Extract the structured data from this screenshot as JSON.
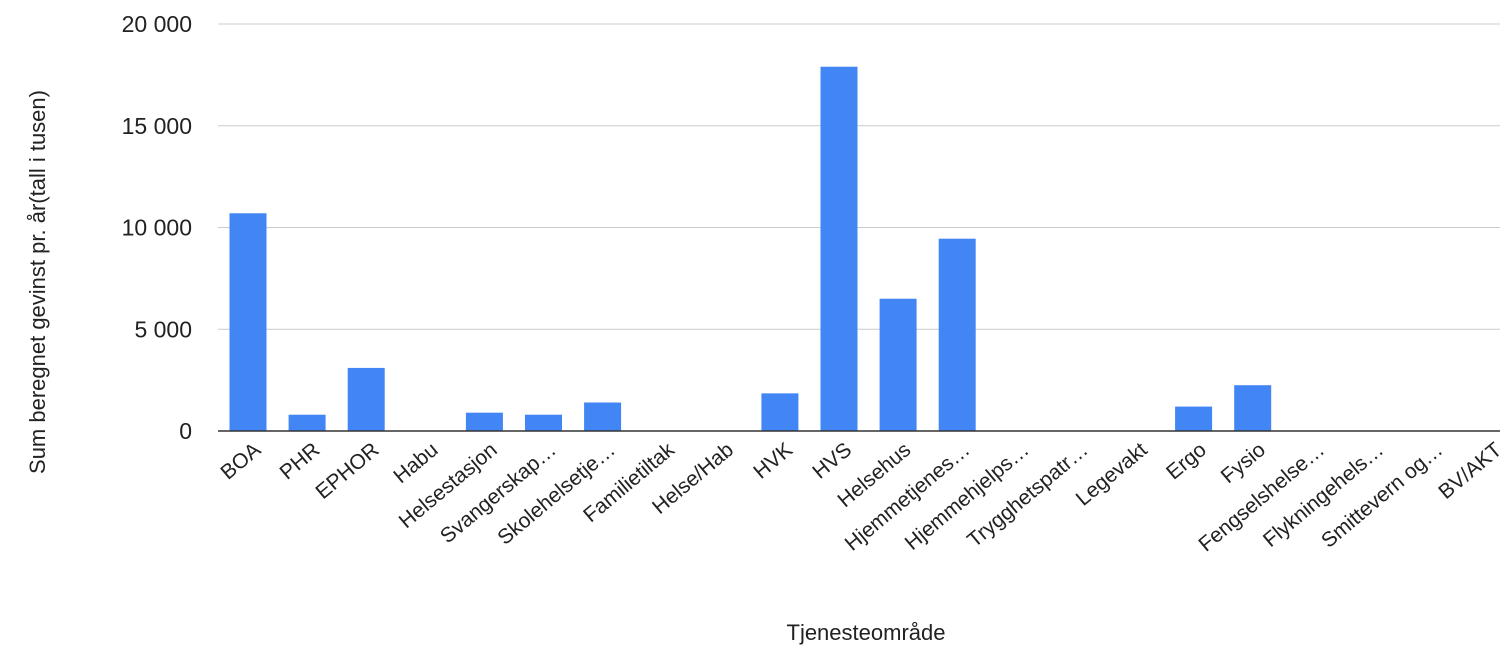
{
  "chart_data": {
    "type": "bar",
    "xlabel": "Tjenesteområde",
    "ylabel": "Sum beregnet gevinst pr. år(tall i tusen)",
    "ylim": [
      0,
      20000
    ],
    "y_ticks": [
      0,
      5000,
      10000,
      15000,
      20000
    ],
    "y_tick_labels": [
      "0",
      "5 000",
      "10 000",
      "15 000",
      "20 000"
    ],
    "grid": true,
    "legend": "none",
    "categories": [
      "BOA",
      "PHR",
      "EPHOR",
      "Habu",
      "Helsestasjon",
      "Svangerskap…",
      "Skolehelsetje…",
      "Familietiltak",
      "Helse/Hab",
      "HVK",
      "HVS",
      "Helsehus",
      "Hjemmetjenes…",
      "Hjemmehjelps…",
      "Trygghetspatr…",
      "Legevakt",
      "Ergo",
      "Fysio",
      "Fengselshelse…",
      "Flykningehels…",
      "Smittevern og…",
      "BV/AKT"
    ],
    "values": [
      10700,
      800,
      3100,
      0,
      900,
      800,
      1400,
      0,
      0,
      1850,
      17900,
      6500,
      9450,
      0,
      0,
      0,
      1200,
      2250,
      0,
      0,
      0,
      0
    ],
    "colors": {
      "bar": "#4285f4",
      "grid": "#cccccc",
      "baseline": "#333333",
      "text": "#222222"
    }
  }
}
